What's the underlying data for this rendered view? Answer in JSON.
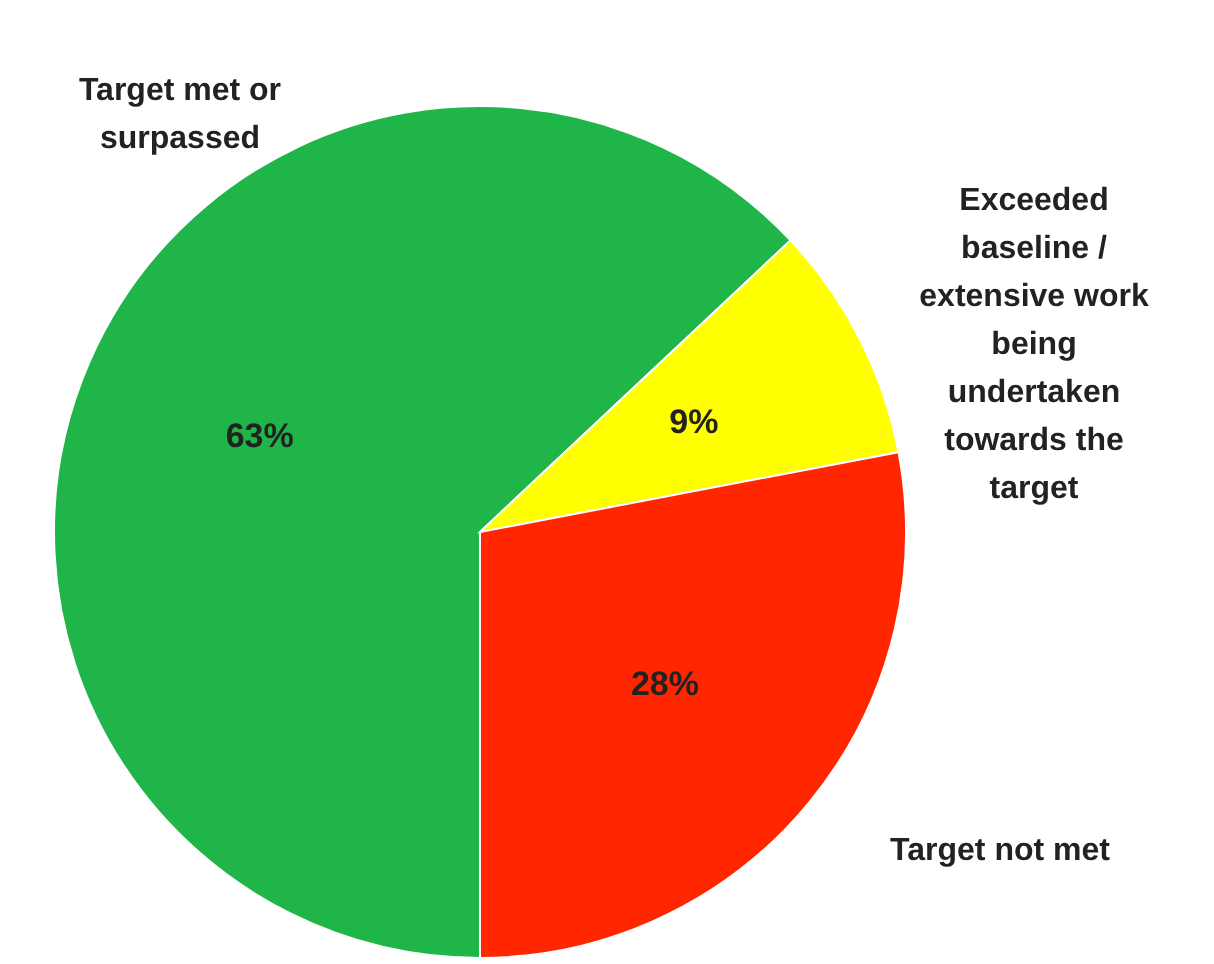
{
  "chart_data": {
    "type": "pie",
    "categories": [
      "Target met or\nsurpassed",
      "Exceeded\nbaseline /\nextensive work\nbeing\nundertaken\ntowards the\ntarget",
      "Target not met"
    ],
    "values": [
      63,
      9,
      28
    ],
    "colors": [
      "#1fb548",
      "#ffff00",
      "#ff2600"
    ],
    "value_labels": [
      "63%",
      "9%",
      "28%"
    ]
  }
}
